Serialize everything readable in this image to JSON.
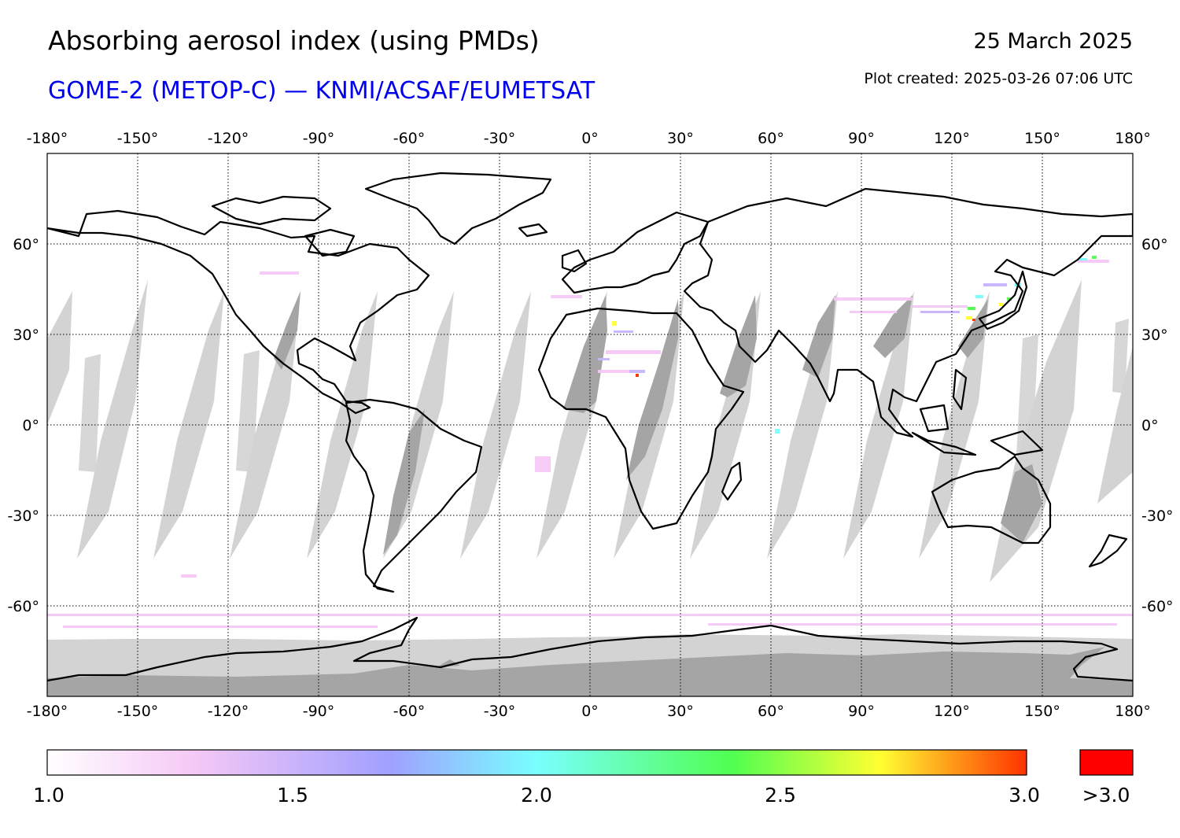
{
  "header": {
    "title": "Absorbing aerosol index (using PMDs)",
    "subtitle": "GOME-2 (METOP-C) — KNMI/ACSAF/EUMETSAT",
    "date": "25 March 2025",
    "plot_created": "Plot created: 2025-03-26 07:06 UTC",
    "subtitle_color": "#0000ee"
  },
  "map": {
    "projection": "equirectangular",
    "lon_range": [
      -180,
      180
    ],
    "lat_range": [
      -90,
      90
    ],
    "lon_ticks": [
      -180,
      -150,
      -120,
      -90,
      -60,
      -30,
      0,
      30,
      60,
      90,
      120,
      150,
      180
    ],
    "lat_ticks": [
      60,
      30,
      0,
      -30,
      -60
    ],
    "lon_tick_labels": [
      "-180°",
      "-150°",
      "-120°",
      "-90°",
      "-60°",
      "-30°",
      "0°",
      "30°",
      "60°",
      "90°",
      "120°",
      "150°",
      "180°"
    ],
    "lat_tick_labels": [
      "60°",
      "30°",
      "0°",
      "-30°",
      "-60°"
    ],
    "grid": "dotted",
    "no_data_color": "#d3d3d3",
    "land_no_data_color": "#a5a5a5",
    "coastline_color": "#000000"
  },
  "colorbar": {
    "range": [
      1.0,
      3.0
    ],
    "labels": [
      "1.0",
      "1.5",
      "2.0",
      "2.5",
      "3.0"
    ],
    "over_label": ">3.0",
    "over_color": "#ff0000",
    "stops": [
      {
        "value": 1.0,
        "color": "#ffffff"
      },
      {
        "value": 1.3,
        "color": "#f5c8f5"
      },
      {
        "value": 1.7,
        "color": "#a0a0ff"
      },
      {
        "value": 2.0,
        "color": "#78ffff"
      },
      {
        "value": 2.4,
        "color": "#50ff50"
      },
      {
        "value": 2.7,
        "color": "#ffff32"
      },
      {
        "value": 3.0,
        "color": "#ff3200"
      }
    ]
  }
}
